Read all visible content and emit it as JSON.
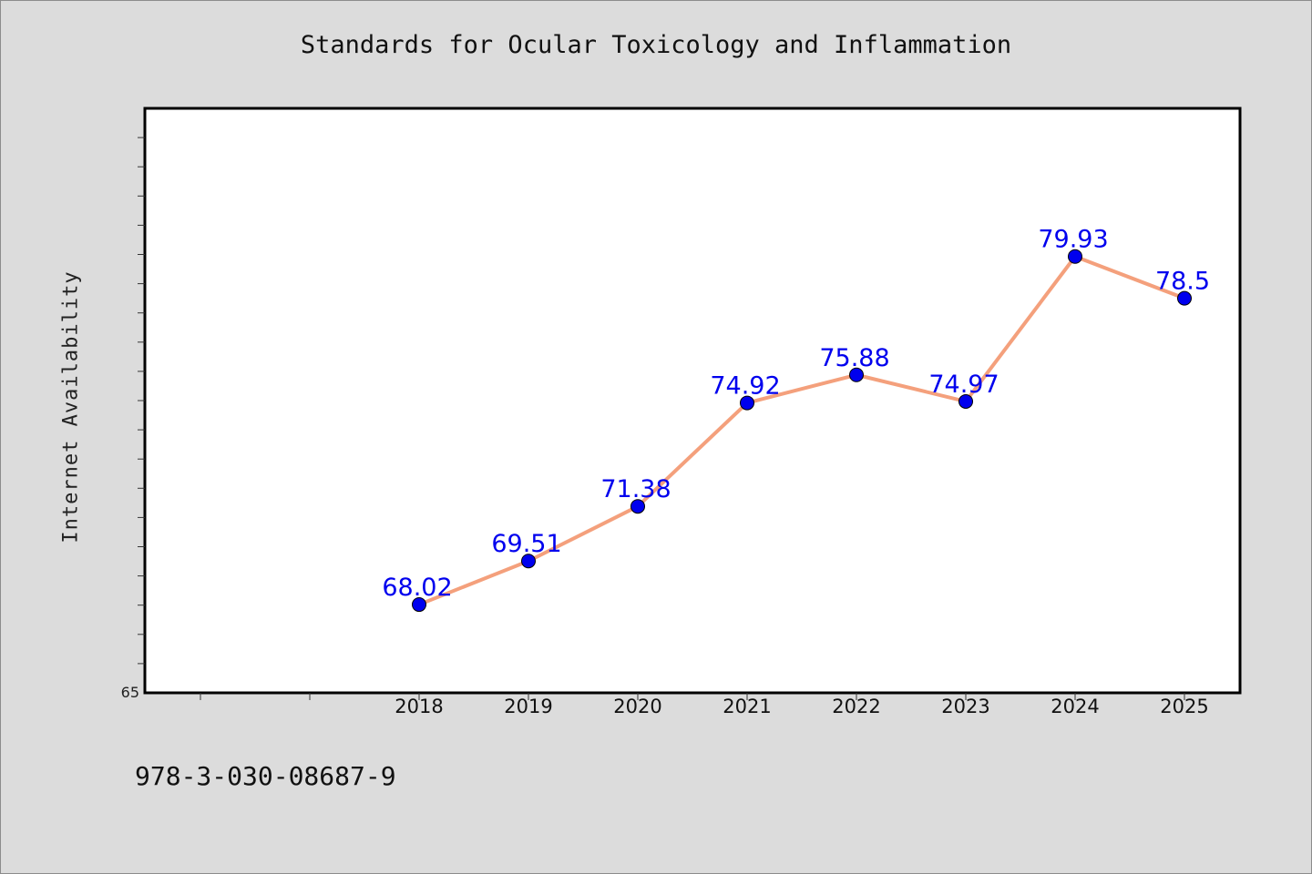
{
  "footer": {
    "isbn": "978-3-030-08687-9"
  },
  "colors": {
    "background": "#dcdcdc",
    "plot_background": "#ffffff",
    "line": "#f4a07c",
    "marker": "#0000ee",
    "data_label": "#0000ee"
  },
  "chart_data": {
    "type": "line",
    "title": "Standards for Ocular Toxicology and Inflammation",
    "xlabel": "",
    "ylabel": "Internet Availability",
    "categories": [
      "2018",
      "2019",
      "2020",
      "2021",
      "2022",
      "2023",
      "2024",
      "2025"
    ],
    "series": [
      {
        "values": [
          68.02,
          69.51,
          71.38,
          74.92,
          75.88,
          74.97,
          79.93,
          78.5
        ],
        "labels": [
          "68.02",
          "69.51",
          "71.38",
          "74.92",
          "75.88",
          "74.97",
          "79.93",
          "78.5"
        ]
      }
    ],
    "ylim": [
      65,
      85
    ],
    "ytick_labels": [
      "65"
    ],
    "grid": false,
    "legend": "none"
  }
}
